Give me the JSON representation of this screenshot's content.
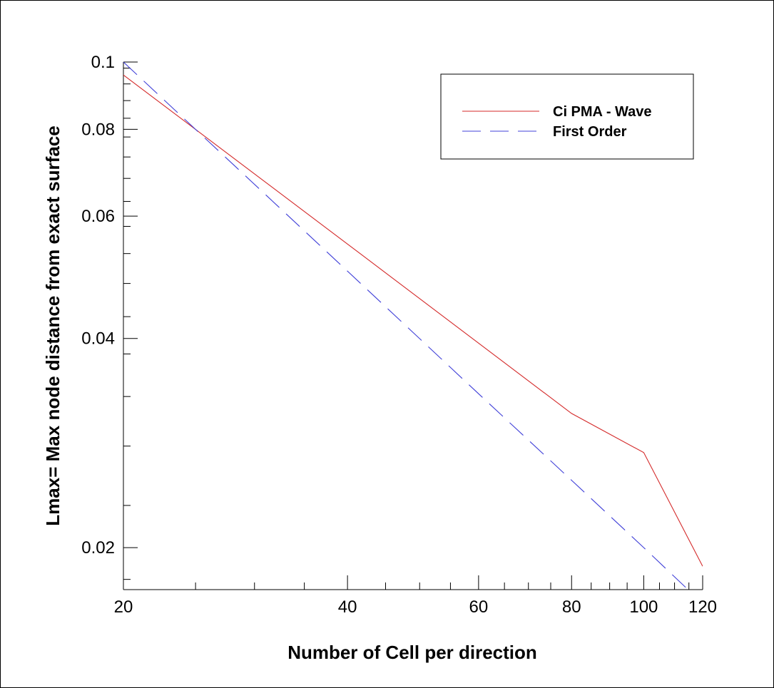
{
  "chart_data": {
    "type": "line",
    "xscale": "log",
    "yscale": "log",
    "xlabel": "Number of Cell per direction",
    "ylabel": "Lmax= Max node distance from exact surface",
    "xlim": [
      20,
      120
    ],
    "ylim": [
      0.0174,
      0.1
    ],
    "x_ticks": [
      20,
      40,
      60,
      80,
      100,
      120
    ],
    "x_tick_labels": [
      "20",
      "40",
      "60",
      "80",
      "100",
      "120"
    ],
    "y_ticks": [
      0.02,
      0.04,
      0.06,
      0.08,
      0.1
    ],
    "y_tick_labels": [
      "0.02",
      "0.04",
      "0.06",
      "0.08",
      "0.1"
    ],
    "grid": false,
    "legend_position": "top-right",
    "series": [
      {
        "name": "Ci PMA - Wave",
        "color": "#d42a2a",
        "dash": "solid",
        "x": [
          20,
          40,
          80,
          100,
          120
        ],
        "y": [
          0.0958,
          0.0547,
          0.0312,
          0.0274,
          0.0188
        ]
      },
      {
        "name": "First Order",
        "color": "#4040d8",
        "dash": "dashed",
        "x": [
          20,
          40,
          60,
          80,
          100,
          116
        ],
        "y": [
          0.1,
          0.05,
          0.0333,
          0.025,
          0.02,
          0.0172
        ]
      }
    ]
  }
}
